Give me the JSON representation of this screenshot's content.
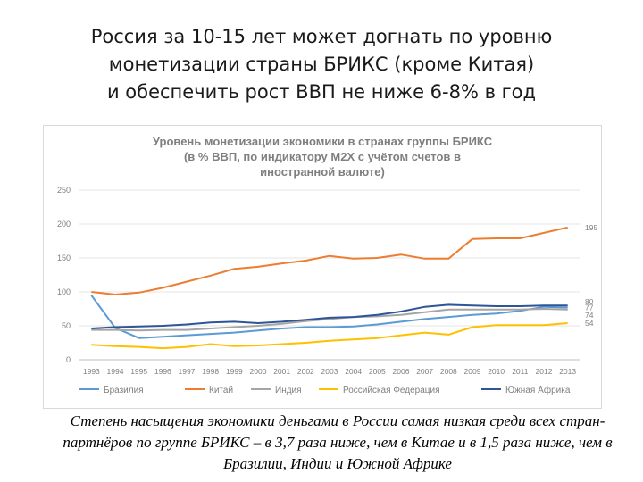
{
  "slide": {
    "title_lines": [
      "Россия за 10-15 лет может догнать по уровню",
      "монетизации страны БРИКС (кроме Китая)",
      "и обеспечить рост ВВП не ниже 6-8% в год"
    ],
    "caption": "Степень насыщения экономики деньгами в России самая низкая среди всех стран-партнёров по группе БРИКС – в 3,7 раза ниже, чем в Китае и в 1,5 раза ниже, чем в Бразилии, Индии и Южной Африке"
  },
  "chart_data": {
    "type": "line",
    "title_lines": [
      "Уровень монетизации экономики в странах группы БРИКС",
      "(в % ВВП, по индикатору M2X с учётом счетов в",
      "иностранной валюте)"
    ],
    "x": [
      "1993",
      "1994",
      "1995",
      "1996",
      "1997",
      "1998",
      "1999",
      "2000",
      "2001",
      "2002",
      "2003",
      "2004",
      "2005",
      "2006",
      "2007",
      "2008",
      "2009",
      "2010",
      "2011",
      "2012",
      "2013"
    ],
    "ylim": [
      0,
      250
    ],
    "yticks": [
      0,
      50,
      100,
      150,
      200,
      250
    ],
    "legend_position": "bottom",
    "grid": true,
    "series": [
      {
        "name": "Бразилия",
        "color": "#5b9bd5",
        "values": [
          95,
          47,
          32,
          34,
          36,
          38,
          40,
          43,
          46,
          48,
          48,
          49,
          52,
          56,
          60,
          63,
          66,
          68,
          72,
          78,
          77
        ],
        "end_label": "77"
      },
      {
        "name": "Китай",
        "color": "#ed7d31",
        "values": [
          100,
          96,
          99,
          106,
          115,
          124,
          134,
          137,
          142,
          146,
          153,
          149,
          150,
          155,
          149,
          149,
          178,
          179,
          179,
          187,
          195
        ],
        "end_label": "195"
      },
      {
        "name": "Индия",
        "color": "#a5a5a5",
        "values": [
          44,
          44,
          43,
          44,
          44,
          46,
          48,
          50,
          53,
          57,
          60,
          63,
          64,
          66,
          70,
          74,
          74,
          74,
          74,
          75,
          74
        ],
        "end_label": "74"
      },
      {
        "name": "Российская Федерация",
        "color": "#ffc000",
        "values": [
          22,
          20,
          19,
          17,
          19,
          23,
          20,
          21,
          23,
          25,
          28,
          30,
          32,
          36,
          40,
          37,
          48,
          51,
          51,
          51,
          54
        ],
        "end_label": "54"
      },
      {
        "name": "Южная Африка",
        "color": "#2f5597",
        "values": [
          46,
          48,
          49,
          50,
          52,
          55,
          56,
          54,
          56,
          59,
          62,
          63,
          66,
          71,
          78,
          81,
          80,
          79,
          79,
          80,
          80
        ],
        "end_label": "80"
      }
    ]
  }
}
